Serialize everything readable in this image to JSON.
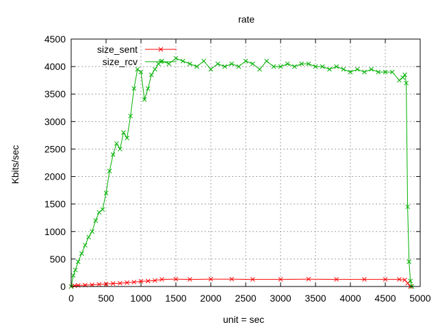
{
  "chart_data": {
    "type": "line",
    "title": "rate",
    "xlabel": "unit = sec",
    "ylabel": "Kbits/sec",
    "xlim": [
      0,
      5000
    ],
    "ylim": [
      0,
      4500
    ],
    "x_ticks": [
      0,
      500,
      1000,
      1500,
      2000,
      2500,
      3000,
      3500,
      4000,
      4500,
      5000
    ],
    "y_ticks": [
      0,
      500,
      1000,
      1500,
      2000,
      2500,
      3000,
      3500,
      4000,
      4500
    ],
    "grid": true,
    "legend_position": "top-left",
    "series": [
      {
        "name": "size_sent",
        "color": "#ff0000",
        "marker": "x",
        "x": [
          0,
          50,
          100,
          200,
          300,
          400,
          500,
          600,
          700,
          800,
          900,
          1000,
          1100,
          1200,
          1300,
          1500,
          1700,
          2000,
          2300,
          2600,
          3000,
          3400,
          3800,
          4200,
          4500,
          4700,
          4780,
          4820,
          4860
        ],
        "y": [
          0,
          15,
          20,
          25,
          30,
          40,
          45,
          55,
          60,
          70,
          80,
          95,
          100,
          110,
          130,
          135,
          130,
          135,
          135,
          130,
          130,
          135,
          130,
          130,
          130,
          130,
          120,
          60,
          0
        ]
      },
      {
        "name": "size_rcv",
        "color": "#00b000",
        "marker": "x",
        "x": [
          0,
          30,
          60,
          100,
          150,
          200,
          250,
          300,
          350,
          400,
          450,
          500,
          550,
          600,
          650,
          700,
          750,
          800,
          850,
          900,
          950,
          1000,
          1050,
          1100,
          1150,
          1200,
          1250,
          1300,
          1400,
          1500,
          1600,
          1700,
          1800,
          1900,
          2000,
          2100,
          2200,
          2300,
          2400,
          2500,
          2600,
          2700,
          2800,
          2900,
          3000,
          3100,
          3200,
          3300,
          3400,
          3500,
          3600,
          3700,
          3800,
          3900,
          4000,
          4100,
          4200,
          4300,
          4400,
          4500,
          4600,
          4700,
          4750,
          4780,
          4800,
          4820,
          4840,
          4860,
          4880
        ],
        "y": [
          0,
          200,
          300,
          450,
          600,
          750,
          900,
          1000,
          1200,
          1350,
          1400,
          1700,
          2100,
          2400,
          2600,
          2500,
          2800,
          2700,
          3100,
          3600,
          3950,
          3900,
          3400,
          3600,
          3850,
          3950,
          4050,
          4100,
          4050,
          4150,
          4100,
          4050,
          4000,
          4100,
          3950,
          4050,
          4000,
          4050,
          4000,
          4100,
          4050,
          3950,
          4100,
          4000,
          4000,
          4050,
          4000,
          4050,
          4050,
          4000,
          4000,
          3950,
          4000,
          3950,
          3900,
          3950,
          3900,
          3950,
          3900,
          3900,
          3900,
          3750,
          3800,
          3850,
          3700,
          1450,
          450,
          100,
          0
        ]
      }
    ]
  }
}
